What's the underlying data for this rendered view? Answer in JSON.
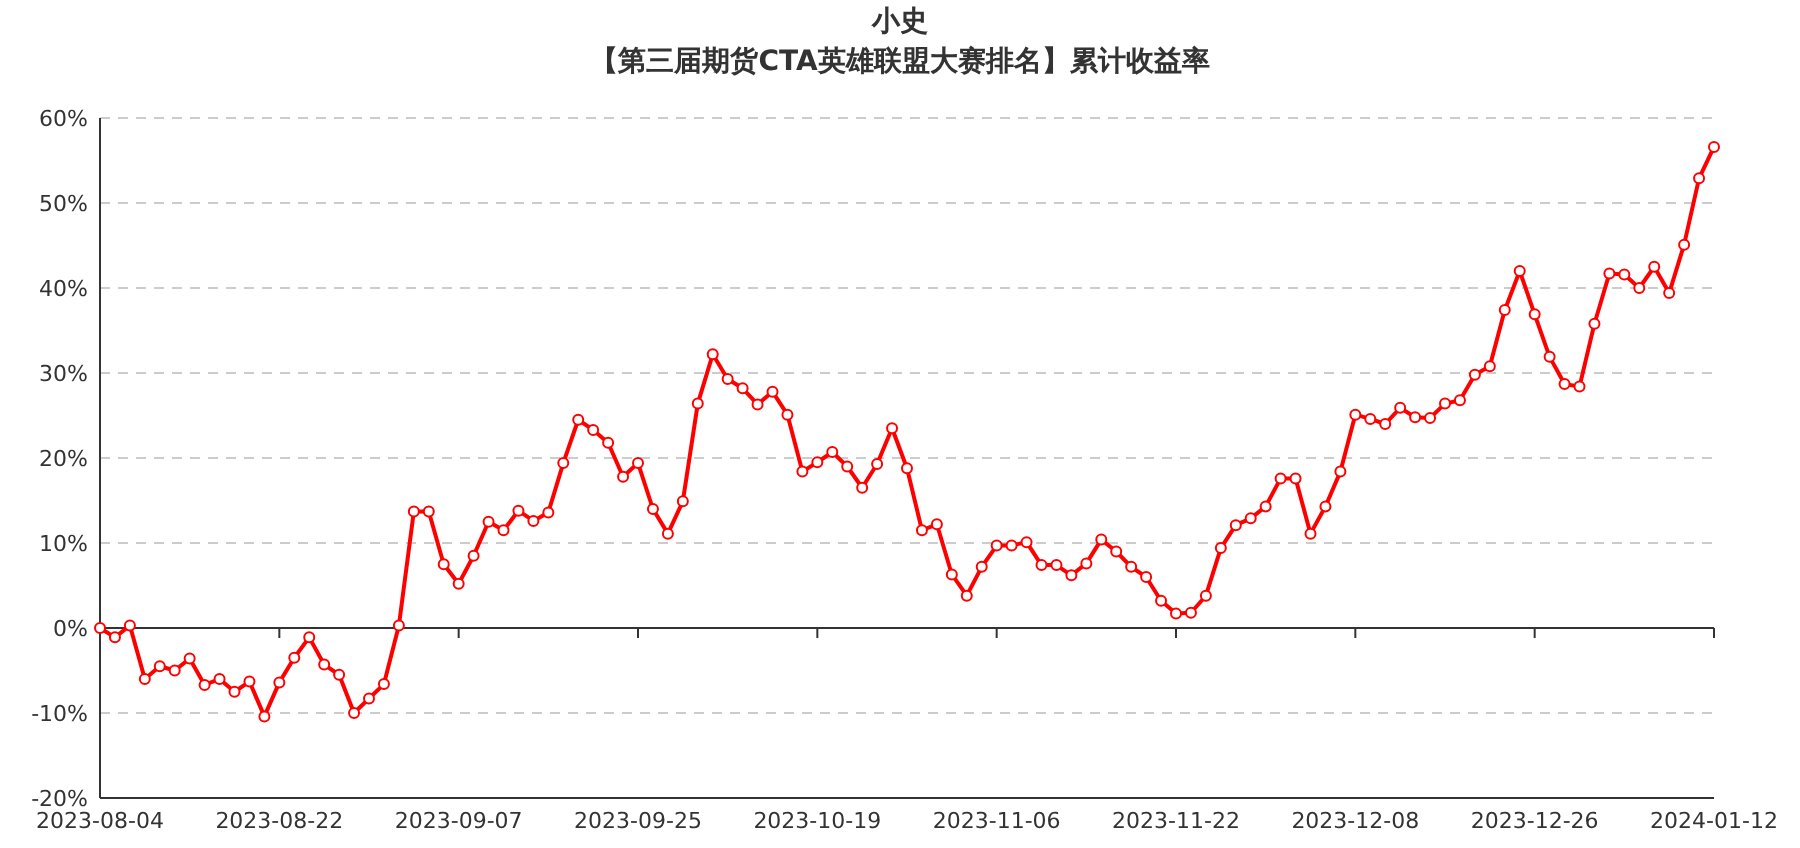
{
  "chart_data": {
    "type": "line",
    "title": "小史",
    "subtitle": "【第三届期货CTA英雄联盟大赛排名】累计收益率",
    "categories": [
      "2023-08-04",
      null,
      null,
      null,
      null,
      null,
      null,
      null,
      null,
      null,
      null,
      null,
      "2023-08-22",
      null,
      null,
      null,
      null,
      null,
      null,
      null,
      null,
      null,
      null,
      null,
      "2023-09-07",
      null,
      null,
      null,
      null,
      null,
      null,
      null,
      null,
      null,
      null,
      null,
      "2023-09-25",
      null,
      null,
      null,
      null,
      null,
      null,
      null,
      null,
      null,
      null,
      null,
      "2023-10-19",
      null,
      null,
      null,
      null,
      null,
      null,
      null,
      null,
      null,
      null,
      null,
      "2023-11-06",
      null,
      null,
      null,
      null,
      null,
      null,
      null,
      null,
      null,
      null,
      null,
      "2023-11-22",
      null,
      null,
      null,
      null,
      null,
      null,
      null,
      null,
      null,
      null,
      null,
      "2023-12-08",
      null,
      null,
      null,
      null,
      null,
      null,
      null,
      null,
      null,
      null,
      null,
      "2023-12-26",
      null,
      null,
      null,
      null,
      null,
      null,
      null,
      null,
      null,
      null,
      null,
      "2024-01-12"
    ],
    "series": [
      {
        "color": "#ff0000",
        "values": [
          0,
          -1.1,
          0.3,
          -6.0,
          -4.5,
          -5.0,
          -3.6,
          -6.7,
          -6.0,
          -7.5,
          -6.3,
          -10.4,
          -6.4,
          -3.5,
          -1.1,
          -4.3,
          -5.5,
          -10.0,
          -8.3,
          -6.6,
          0.3,
          13.7,
          13.7,
          7.5,
          5.2,
          8.5,
          12.5,
          11.5,
          13.8,
          12.6,
          13.6,
          19.4,
          24.5,
          23.3,
          21.8,
          17.8,
          19.4,
          14,
          11.1,
          14.9,
          26.4,
          32.2,
          29.3,
          28.2,
          26.3,
          27.8,
          25.1,
          18.4,
          19.5,
          20.7,
          19.0,
          16.5,
          19.3,
          23.5,
          18.8,
          11.5,
          12.2,
          6.3,
          3.8,
          7.2,
          9.7,
          9.7,
          10.1,
          7.4,
          7.4,
          6.2,
          7.6,
          10.4,
          9.0,
          7.2,
          6.0,
          3.2,
          1.7,
          1.8,
          3.8,
          9.4,
          12.1,
          12.9,
          14.3,
          17.6,
          17.6,
          11.1,
          14.3,
          18.4,
          25.1,
          24.6,
          24.0,
          25.9,
          24.8,
          24.7,
          26.4,
          26.8,
          29.8,
          30.8,
          37.4,
          42.0,
          36.9,
          31.9,
          28.7,
          28.4,
          35.8,
          41.7,
          41.6,
          40.0,
          42.5,
          39.4,
          45.1,
          52.9,
          56.6
        ]
      }
    ],
    "ylim": [
      -20,
      60
    ],
    "yticks": [
      {
        "value": -20,
        "label": "-20%"
      },
      {
        "value": -10,
        "label": "-10%"
      },
      {
        "value": 0,
        "label": "0%"
      },
      {
        "value": 10,
        "label": "10%"
      },
      {
        "value": 20,
        "label": "20%"
      },
      {
        "value": 30,
        "label": "30%"
      },
      {
        "value": 40,
        "label": "40%"
      },
      {
        "value": 50,
        "label": "50%"
      },
      {
        "value": 60,
        "label": "60%"
      }
    ],
    "grid": "y",
    "marker": "circle",
    "line_style": "solid"
  }
}
